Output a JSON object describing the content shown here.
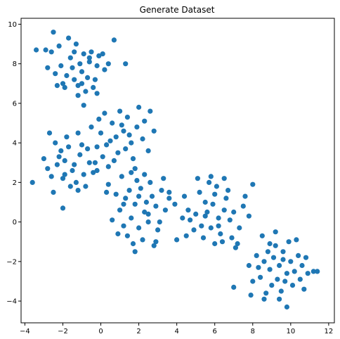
{
  "chart_data": {
    "type": "scatter",
    "title": "Generate Dataset",
    "xlabel": "",
    "ylabel": "",
    "xlim": [
      -4.2,
      12.3
    ],
    "ylim": [
      -5.1,
      10.3
    ],
    "x_ticks": [
      -4,
      -2,
      0,
      2,
      4,
      6,
      8,
      10,
      12
    ],
    "y_ticks": [
      -4,
      -2,
      0,
      2,
      4,
      6,
      8,
      10
    ],
    "grid": false,
    "marker_color": "#1f77b4",
    "series": [
      {
        "name": "",
        "points": [
          [
            -1.0,
            7.6
          ],
          [
            -1.4,
            7.2
          ],
          [
            -0.6,
            8.1
          ],
          [
            -0.2,
            7.9
          ],
          [
            -1.8,
            7.4
          ],
          [
            -2.1,
            7.9
          ],
          [
            -0.9,
            8.5
          ],
          [
            -1.2,
            6.9
          ],
          [
            -0.3,
            7.2
          ],
          [
            -1.6,
            8.3
          ],
          [
            -2.4,
            7.5
          ],
          [
            -0.5,
            8.6
          ],
          [
            -1.9,
            6.8
          ],
          [
            -1.1,
            8.0
          ],
          [
            -0.7,
            7.3
          ],
          [
            -0.1,
            8.4
          ],
          [
            0.2,
            7.7
          ],
          [
            -2.2,
            8.9
          ],
          [
            -1.3,
            9.0
          ],
          [
            -0.8,
            6.6
          ],
          [
            -2.6,
            8.6
          ],
          [
            -1.5,
            7.8
          ],
          [
            0.4,
            8.0
          ],
          [
            -0.4,
            6.8
          ],
          [
            -2.0,
            7.0
          ],
          [
            -1.7,
            9.3
          ],
          [
            -2.5,
            9.6
          ],
          [
            -2.9,
            8.7
          ],
          [
            -3.4,
            8.7
          ],
          [
            0.7,
            9.2
          ],
          [
            1.3,
            8.0
          ],
          [
            -0.9,
            5.9
          ],
          [
            -1.2,
            6.4
          ],
          [
            -2.8,
            7.8
          ],
          [
            -0.2,
            6.5
          ],
          [
            0.1,
            8.5
          ],
          [
            -0.6,
            8.3
          ],
          [
            -1.4,
            8.6
          ],
          [
            -2.3,
            6.9
          ],
          [
            -1.0,
            7.0
          ],
          [
            0.8,
            4.3
          ],
          [
            0.3,
            3.9
          ],
          [
            1.2,
            4.6
          ],
          [
            1.6,
            4.0
          ],
          [
            0.0,
            4.5
          ],
          [
            0.6,
            5.0
          ],
          [
            1.9,
            4.8
          ],
          [
            0.9,
            3.5
          ],
          [
            1.4,
            5.3
          ],
          [
            -0.2,
            3.8
          ],
          [
            2.2,
            4.2
          ],
          [
            0.5,
            4.1
          ],
          [
            1.0,
            5.6
          ],
          [
            -0.5,
            4.8
          ],
          [
            2.5,
            3.6
          ],
          [
            1.7,
            3.2
          ],
          [
            0.2,
            5.5
          ],
          [
            2.0,
            5.8
          ],
          [
            -0.3,
            3.0
          ],
          [
            1.1,
            4.9
          ],
          [
            2.3,
            5.1
          ],
          [
            0.7,
            3.1
          ],
          [
            1.5,
            4.4
          ],
          [
            -0.1,
            5.2
          ],
          [
            2.8,
            4.6
          ],
          [
            0.4,
            2.8
          ],
          [
            2.6,
            5.6
          ],
          [
            1.8,
            2.7
          ],
          [
            0.1,
            3.3
          ],
          [
            1.3,
            3.7
          ],
          [
            -1.9,
            3.1
          ],
          [
            -1.5,
            2.6
          ],
          [
            -1.1,
            3.4
          ],
          [
            -2.3,
            2.9
          ],
          [
            -1.7,
            3.8
          ],
          [
            -0.9,
            2.4
          ],
          [
            -2.6,
            2.3
          ],
          [
            -1.3,
            2.0
          ],
          [
            -0.6,
            3.0
          ],
          [
            -2.1,
            3.6
          ],
          [
            -2.8,
            2.7
          ],
          [
            -1.0,
            3.9
          ],
          [
            -1.6,
            1.8
          ],
          [
            -2.4,
            4.0
          ],
          [
            -0.4,
            2.5
          ],
          [
            -1.2,
            4.5
          ],
          [
            -2.0,
            2.2
          ],
          [
            -3.0,
            3.2
          ],
          [
            -0.7,
            3.7
          ],
          [
            -2.5,
            1.5
          ],
          [
            -1.4,
            2.9
          ],
          [
            -3.6,
            2.0
          ],
          [
            -2.0,
            0.7
          ],
          [
            -1.8,
            4.3
          ],
          [
            -0.8,
            1.8
          ],
          [
            -2.7,
            4.5
          ],
          [
            -0.2,
            2.6
          ],
          [
            -1.2,
            1.6
          ],
          [
            -1.9,
            2.4
          ],
          [
            -2.2,
            3.3
          ],
          [
            1.8,
            0.9
          ],
          [
            2.3,
            0.5
          ],
          [
            1.3,
            1.2
          ],
          [
            2.7,
            1.3
          ],
          [
            1.6,
            0.2
          ],
          [
            2.1,
            1.7
          ],
          [
            1.0,
            0.6
          ],
          [
            2.9,
            0.8
          ],
          [
            1.5,
            1.6
          ],
          [
            2.5,
            0.0
          ],
          [
            3.2,
            1.6
          ],
          [
            0.8,
            1.4
          ],
          [
            2.0,
            -0.3
          ],
          [
            1.2,
            -0.2
          ],
          [
            3.4,
            0.6
          ],
          [
            1.9,
            2.1
          ],
          [
            2.6,
            2.0
          ],
          [
            0.6,
            0.1
          ],
          [
            3.0,
            -0.4
          ],
          [
            2.2,
            -0.9
          ],
          [
            1.4,
            -0.7
          ],
          [
            3.3,
            2.2
          ],
          [
            0.4,
            1.9
          ],
          [
            3.6,
            1.2
          ],
          [
            1.7,
            -1.1
          ],
          [
            2.8,
            -1.2
          ],
          [
            1.1,
            2.3
          ],
          [
            0.9,
            -0.6
          ],
          [
            3.1,
            0.0
          ],
          [
            2.4,
            1.0
          ],
          [
            1.8,
            -1.5
          ],
          [
            2.9,
            -1.0
          ],
          [
            3.6,
            1.5
          ],
          [
            2.3,
            2.4
          ],
          [
            1.6,
            2.5
          ],
          [
            2.0,
            1.3
          ],
          [
            2.5,
            0.4
          ],
          [
            1.2,
            0.9
          ],
          [
            0.3,
            1.5
          ],
          [
            3.9,
            0.9
          ],
          [
            5.6,
            0.5
          ],
          [
            5.9,
            0.9
          ],
          [
            6.2,
            0.2
          ],
          [
            5.3,
            -0.2
          ],
          [
            6.5,
            0.6
          ],
          [
            5.0,
            0.4
          ],
          [
            6.0,
            1.4
          ],
          [
            5.5,
            1.0
          ],
          [
            6.8,
            0.1
          ],
          [
            4.9,
            -0.4
          ],
          [
            6.3,
            -0.6
          ],
          [
            5.8,
            -0.3
          ],
          [
            6.6,
            1.2
          ],
          [
            5.2,
            1.5
          ],
          [
            7.0,
            0.5
          ],
          [
            4.6,
            0.6
          ],
          [
            6.1,
            1.8
          ],
          [
            5.7,
            2.0
          ],
          [
            7.3,
            -0.3
          ],
          [
            4.7,
            0.1
          ],
          [
            6.4,
            -1.0
          ],
          [
            5.4,
            -0.8
          ],
          [
            7.5,
            0.8
          ],
          [
            4.5,
            -0.7
          ],
          [
            6.9,
            -0.8
          ],
          [
            5.1,
            2.2
          ],
          [
            6.7,
            1.6
          ],
          [
            4.3,
            0.2
          ],
          [
            7.6,
            1.3
          ],
          [
            6.0,
            -1.1
          ],
          [
            5.8,
            2.3
          ],
          [
            7.8,
            0.3
          ],
          [
            7.2,
            -1.1
          ],
          [
            4.4,
            1.3
          ],
          [
            6.5,
            2.2
          ],
          [
            4.0,
            -0.9
          ],
          [
            7.1,
            -1.3
          ],
          [
            6.2,
            -0.2
          ],
          [
            5.5,
            0.3
          ],
          [
            8.0,
            1.9
          ],
          [
            9.4,
            -2.2
          ],
          [
            9.8,
            -2.6
          ],
          [
            9.1,
            -1.8
          ],
          [
            9.6,
            -1.5
          ],
          [
            8.9,
            -2.4
          ],
          [
            10.0,
            -2.0
          ],
          [
            9.3,
            -2.9
          ],
          [
            8.6,
            -2.0
          ],
          [
            10.2,
            -2.5
          ],
          [
            9.0,
            -3.2
          ],
          [
            9.7,
            -3.0
          ],
          [
            8.4,
            -2.8
          ],
          [
            10.4,
            -1.7
          ],
          [
            9.2,
            -1.2
          ],
          [
            8.8,
            -1.5
          ],
          [
            10.1,
            -3.2
          ],
          [
            9.5,
            -3.5
          ],
          [
            8.3,
            -2.3
          ],
          [
            10.6,
            -2.2
          ],
          [
            8.7,
            -3.6
          ],
          [
            9.9,
            -1.0
          ],
          [
            10.5,
            -2.9
          ],
          [
            8.2,
            -1.7
          ],
          [
            9.4,
            -3.9
          ],
          [
            10.8,
            -1.8
          ],
          [
            8.0,
            -3.0
          ],
          [
            9.8,
            -4.3
          ],
          [
            8.9,
            -1.1
          ],
          [
            10.9,
            -2.6
          ],
          [
            7.8,
            -2.2
          ],
          [
            8.5,
            -0.7
          ],
          [
            11.2,
            -2.5
          ],
          [
            11.4,
            -2.5
          ],
          [
            7.9,
            -3.7
          ],
          [
            10.3,
            -0.9
          ],
          [
            9.2,
            -0.5
          ],
          [
            7.0,
            -3.3
          ],
          [
            10.7,
            -3.4
          ],
          [
            8.6,
            -3.9
          ],
          [
            9.6,
            -1.9
          ]
        ]
      }
    ]
  }
}
